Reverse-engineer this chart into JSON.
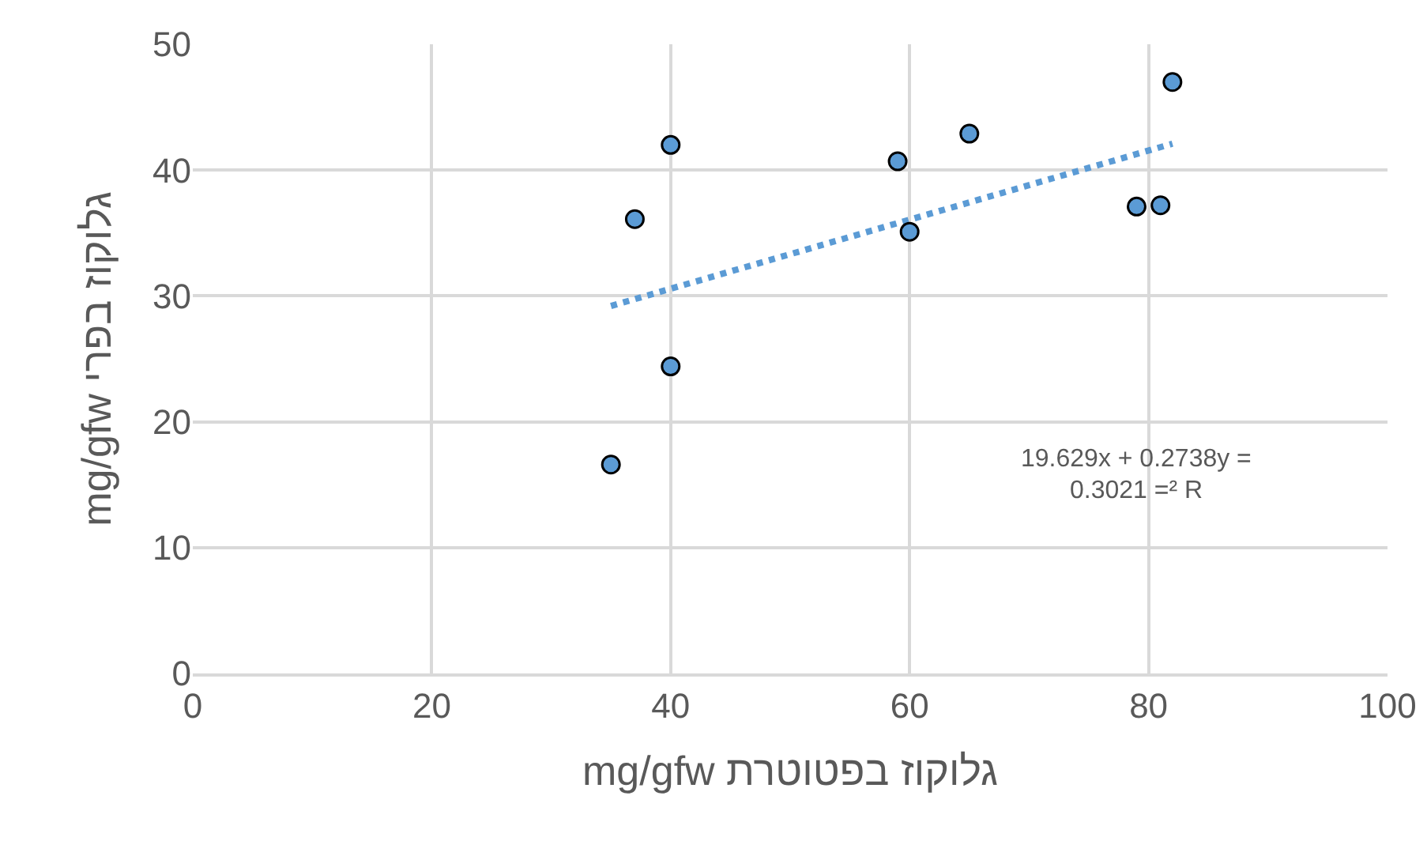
{
  "chart_data": {
    "type": "scatter",
    "xlabel": "mg/gfw גלוקוז בפטוטרת",
    "ylabel": "mg/gfw גלוקוז בפרי",
    "xlim": [
      0,
      100
    ],
    "xticks": [
      0,
      20,
      40,
      60,
      80,
      100
    ],
    "ylim": [
      0,
      50
    ],
    "yticks": [
      0,
      10,
      20,
      30,
      40,
      50
    ],
    "grid": true,
    "series": [
      {
        "marker": "circle",
        "color": "#5b9bd5",
        "x": [
          35,
          37,
          40,
          40,
          59,
          60,
          65,
          79,
          81,
          82
        ],
        "values": [
          16.6,
          36.1,
          42,
          24.4,
          40.7,
          35.1,
          42.9,
          37.1,
          37.2,
          47
        ]
      },
      {
        "type": "line",
        "marker": "none",
        "line_style": "dotted",
        "color": "#5b9bd5",
        "x": [
          35,
          82
        ],
        "values": [
          29.2,
          42.1
        ]
      }
    ],
    "annotations": [
      "19.629x + 0.2738y =",
      "0.3021 =² R"
    ]
  }
}
